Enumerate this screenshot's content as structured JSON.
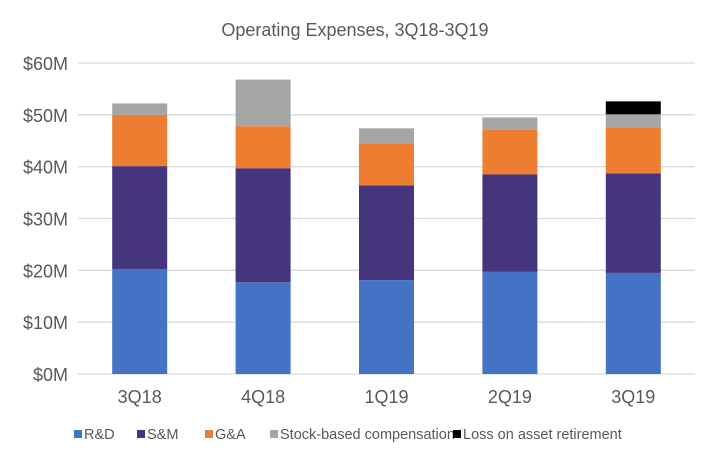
{
  "chart_data": {
    "type": "bar",
    "stacked": true,
    "title": "Operating Expenses, 3Q18-3Q19",
    "xlabel": "",
    "ylabel": "",
    "ylim": [
      0,
      60
    ],
    "y_ticks": [
      0,
      10,
      20,
      30,
      40,
      50,
      60
    ],
    "y_tick_labels": [
      "$0M",
      "$10M",
      "$20M",
      "$30M",
      "$40M",
      "$50M",
      "$60M"
    ],
    "grid": true,
    "legend_position": "bottom",
    "categories": [
      "3Q18",
      "4Q18",
      "1Q19",
      "2Q19",
      "3Q19"
    ],
    "series": [
      {
        "name": "R&D",
        "color": "#4472C4",
        "values": [
          20.2,
          17.7,
          18.1,
          19.7,
          19.5
        ]
      },
      {
        "name": "S&M",
        "color": "#44357C",
        "values": [
          19.9,
          22.0,
          18.3,
          18.8,
          19.2
        ]
      },
      {
        "name": "G&A",
        "color": "#ED7D31",
        "values": [
          9.9,
          8.1,
          8.1,
          8.6,
          8.9
        ]
      },
      {
        "name": "Stock-based compensation",
        "color": "#A5A5A5",
        "values": [
          2.2,
          9.0,
          2.9,
          2.4,
          2.5
        ]
      },
      {
        "name": "Loss on asset retirement",
        "color": "#000000",
        "values": [
          0,
          0,
          0,
          0,
          2.5
        ]
      }
    ]
  }
}
